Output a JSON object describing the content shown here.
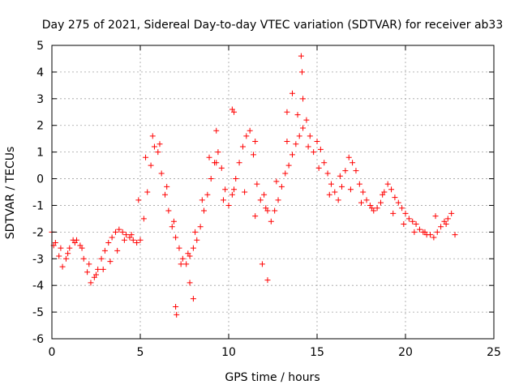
{
  "chart_data": {
    "type": "scatter",
    "title": "Day 275 of 2021, Sidereal Day-to-day VTEC variation (SDTVAR) for receiver ab33",
    "xlabel": "GPS time / hours",
    "ylabel": "SDTVAR / TECUs",
    "xlim": [
      0,
      25
    ],
    "ylim": [
      -6,
      5
    ],
    "xticks": [
      0,
      5,
      10,
      15,
      20,
      25
    ],
    "yticks": [
      -6,
      -5,
      -4,
      -3,
      -2,
      -1,
      0,
      1,
      2,
      3,
      4,
      5
    ],
    "grid": true,
    "marker": "+",
    "color": "#ff0000",
    "series": [
      {
        "name": "SDTVAR",
        "x": [
          0.0,
          0.2,
          0.4,
          0.6,
          0.8,
          1.0,
          1.2,
          1.4,
          1.6,
          1.8,
          2.0,
          2.2,
          2.4,
          2.6,
          2.8,
          3.0,
          3.2,
          3.4,
          3.6,
          3.8,
          4.0,
          4.2,
          4.4,
          4.6,
          4.8,
          5.0,
          5.2,
          5.4,
          5.6,
          5.8,
          6.0,
          6.2,
          6.4,
          6.6,
          6.8,
          7.0,
          7.2,
          7.4,
          7.6,
          7.8,
          8.0,
          8.2,
          8.4,
          8.6,
          8.8,
          9.0,
          9.2,
          9.4,
          9.6,
          9.8,
          10.0,
          10.2,
          10.4,
          10.6,
          10.8,
          11.0,
          11.2,
          11.4,
          11.6,
          11.8,
          12.0,
          12.2,
          12.4,
          12.6,
          12.8,
          13.0,
          13.2,
          13.4,
          13.6,
          13.8,
          14.0,
          14.2,
          14.4,
          14.6,
          14.8,
          15.0,
          15.2,
          15.4,
          15.6,
          15.8,
          16.0,
          16.2,
          16.4,
          16.6,
          16.8,
          17.0,
          17.2,
          17.4,
          17.6,
          17.8,
          18.0,
          18.2,
          18.4,
          18.6,
          18.8,
          19.0,
          19.2,
          19.4,
          19.6,
          19.8,
          20.0,
          20.2,
          20.4,
          20.6,
          20.8,
          21.0,
          21.2,
          21.4,
          21.6,
          21.8,
          22.0,
          22.2,
          22.4,
          22.6,
          22.8,
          0.1,
          0.5,
          0.9,
          1.3,
          1.7,
          2.1,
          2.5,
          2.9,
          3.3,
          3.7,
          4.1,
          4.5,
          4.9,
          5.3,
          5.7,
          6.1,
          6.5,
          6.9,
          7.3,
          7.7,
          8.1,
          8.5,
          8.9,
          9.3,
          9.7,
          10.3,
          10.9,
          11.5,
          12.1,
          12.7,
          13.3,
          13.9,
          14.5,
          15.1,
          15.7,
          16.3,
          16.9,
          17.5,
          18.1,
          18.7,
          19.3,
          19.9,
          20.5,
          21.1,
          21.7,
          22.3,
          14.1,
          14.2,
          14.15,
          10.2,
          10.3,
          7.0,
          7.05,
          8.0,
          7.8,
          11.9,
          12.2,
          11.5,
          9.3,
          13.3,
          13.6
        ],
        "y": [
          -2.0,
          -2.4,
          -2.9,
          -3.3,
          -3.0,
          -2.6,
          -2.3,
          -2.3,
          -2.5,
          -3.0,
          -3.5,
          -3.9,
          -3.7,
          -3.4,
          -3.0,
          -2.7,
          -2.4,
          -2.2,
          -2.0,
          -1.9,
          -2.0,
          -2.1,
          -2.2,
          -2.3,
          -2.4,
          -2.3,
          -1.5,
          -0.5,
          0.5,
          1.2,
          1.0,
          0.2,
          -0.6,
          -1.2,
          -1.8,
          -2.2,
          -2.6,
          -3.0,
          -3.2,
          -2.9,
          -2.6,
          -2.3,
          -1.8,
          -1.2,
          -0.6,
          0.0,
          0.6,
          1.0,
          0.4,
          -0.4,
          -1.0,
          -0.6,
          0.0,
          0.6,
          1.2,
          1.6,
          1.8,
          0.9,
          -0.2,
          -0.8,
          -0.6,
          -1.2,
          -1.6,
          -1.2,
          -0.8,
          -0.3,
          0.2,
          0.5,
          0.9,
          1.3,
          1.6,
          1.9,
          2.2,
          1.6,
          1.0,
          1.4,
          1.1,
          0.6,
          0.2,
          -0.2,
          -0.5,
          -0.8,
          -0.3,
          0.3,
          0.8,
          0.6,
          0.3,
          -0.2,
          -0.5,
          -0.8,
          -1.0,
          -1.2,
          -1.1,
          -0.9,
          -0.5,
          -0.2,
          -0.4,
          -0.7,
          -0.9,
          -1.1,
          -1.3,
          -1.5,
          -1.6,
          -1.7,
          -1.9,
          -2.0,
          -2.1,
          -2.1,
          -2.2,
          -2.0,
          -1.8,
          -1.6,
          -1.5,
          -1.3,
          -2.1,
          -2.5,
          -2.6,
          -2.8,
          -2.4,
          -2.6,
          -3.2,
          -3.6,
          -3.4,
          -3.1,
          -2.7,
          -2.3,
          -2.1,
          -0.8,
          0.8,
          1.6,
          1.3,
          -0.3,
          -1.6,
          -3.2,
          -2.8,
          -2.0,
          -0.8,
          0.8,
          0.6,
          -0.8,
          -0.4,
          -0.5,
          -1.4,
          -1.1,
          -0.1,
          1.4,
          2.4,
          1.2,
          0.4,
          -0.6,
          0.1,
          -0.4,
          -0.9,
          -1.1,
          -0.6,
          -1.3,
          -1.7,
          -2.0,
          -2.0,
          -1.4,
          -1.7,
          4.6,
          3.0,
          4.0,
          2.6,
          2.5,
          -4.8,
          -5.1,
          -4.5,
          -3.9,
          -3.2,
          -3.8,
          1.4,
          1.8,
          2.5,
          3.2
        ]
      }
    ]
  }
}
